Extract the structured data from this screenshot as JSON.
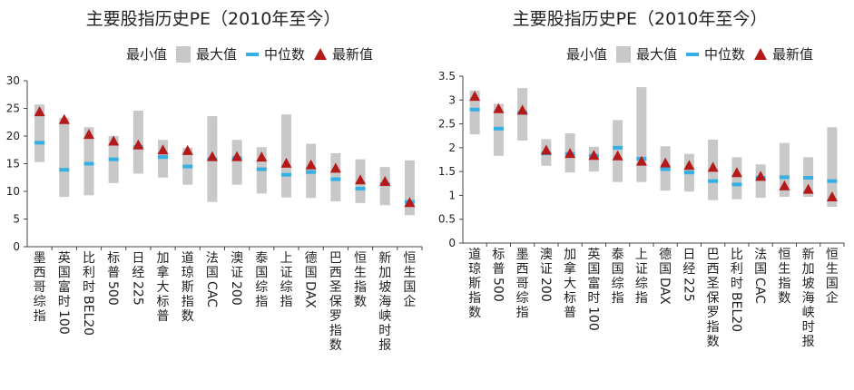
{
  "legend": {
    "min": "最小值",
    "max": "最大值",
    "median": "中位数",
    "latest": "最新值"
  },
  "colors": {
    "range_bar": "#c8c8c8",
    "median": "#35b0e6",
    "latest": "#b51a1a",
    "axis": "#444444"
  },
  "chart_data": [
    {
      "type": "bar",
      "title": "主要股指历史PE（2010年至今）",
      "ylim": [
        0,
        30
      ],
      "yticks": [
        "0",
        "5",
        "10",
        "15",
        "20",
        "25",
        "30"
      ],
      "categories": [
        "墨西哥综指",
        "英国富时100",
        "比利时BEL20",
        "标普500",
        "日经225",
        "加拿大标普",
        "道琼斯指数",
        "法国CAC",
        "澳证200",
        "泰国综指",
        "上证综指",
        "德国DAX",
        "巴西圣保罗指数",
        "恒生指数",
        "新加坡海峡时报",
        "恒生国企"
      ],
      "series": [
        {
          "name": "最小值",
          "values": [
            15.3,
            9.0,
            9.3,
            11.5,
            13.2,
            12.5,
            11.2,
            8.1,
            11.2,
            9.6,
            8.9,
            8.8,
            8.2,
            7.9,
            7.5,
            5.7
          ]
        },
        {
          "name": "最大值",
          "values": [
            25.7,
            23.3,
            21.6,
            20.0,
            24.6,
            19.3,
            17.9,
            23.6,
            19.3,
            18.0,
            23.9,
            18.6,
            16.9,
            15.8,
            14.4,
            15.6
          ]
        },
        {
          "name": "中位数",
          "values": [
            18.8,
            13.9,
            15.0,
            15.8,
            18.0,
            16.2,
            14.5,
            15.8,
            16.0,
            14.0,
            13.0,
            13.5,
            12.2,
            10.5,
            11.3,
            8.1
          ]
        },
        {
          "name": "最新值",
          "values": [
            24.4,
            23.0,
            20.3,
            19.1,
            18.4,
            17.5,
            17.4,
            16.3,
            16.3,
            16.2,
            15.1,
            14.8,
            14.2,
            12.1,
            11.8,
            8.0
          ]
        }
      ]
    },
    {
      "type": "bar",
      "title": "主要股指历史PE（2010年至今）",
      "ylim": [
        0,
        3.5
      ],
      "yticks": [
        "0",
        "0.5",
        "1",
        "1.5",
        "2",
        "2.5",
        "3",
        "3.5"
      ],
      "categories": [
        "道琼斯指数",
        "标普500",
        "墨西哥综指",
        "澳证200",
        "加拿大标普",
        "英国富时100",
        "泰国综指",
        "上证综指",
        "德国DAX",
        "日经225",
        "巴西圣保罗指数",
        "比利时BEL20",
        "法国CAC",
        "恒生指数",
        "新加坡海峡时报",
        "恒生国企"
      ],
      "series": [
        {
          "name": "最小值",
          "values": [
            2.28,
            1.83,
            2.15,
            1.62,
            1.48,
            1.5,
            1.28,
            1.28,
            1.1,
            1.08,
            0.9,
            0.92,
            0.95,
            0.97,
            0.97,
            0.76
          ]
        },
        {
          "name": "最大值",
          "values": [
            3.2,
            2.92,
            3.25,
            2.18,
            2.3,
            2.02,
            2.58,
            3.27,
            2.03,
            1.87,
            2.17,
            1.8,
            1.65,
            2.1,
            1.8,
            2.43
          ]
        },
        {
          "name": "中位数",
          "values": [
            2.8,
            2.4,
            2.73,
            1.88,
            1.87,
            1.83,
            2.0,
            1.77,
            1.55,
            1.48,
            1.3,
            1.23,
            1.37,
            1.38,
            1.37,
            1.3
          ]
        },
        {
          "name": "最新值",
          "values": [
            3.08,
            2.82,
            2.79,
            1.95,
            1.88,
            1.84,
            1.83,
            1.72,
            1.68,
            1.63,
            1.59,
            1.48,
            1.4,
            1.2,
            1.13,
            0.97
          ]
        }
      ]
    }
  ]
}
